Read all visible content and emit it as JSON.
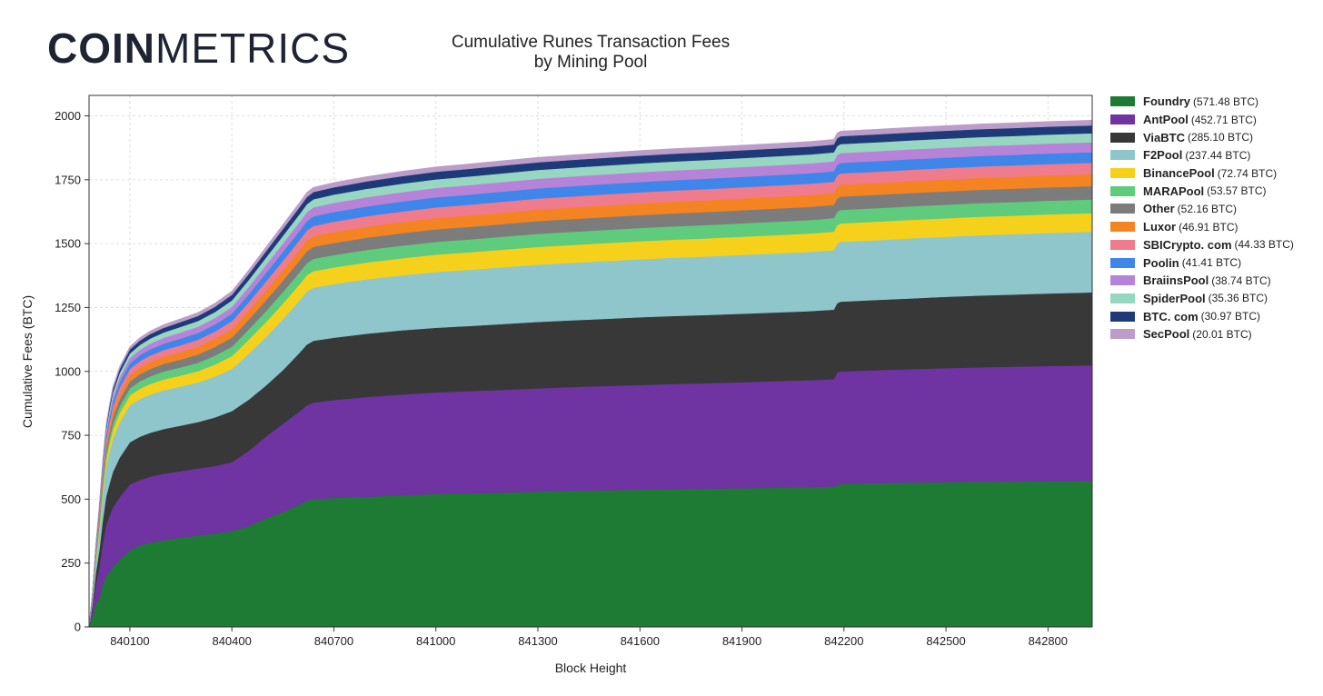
{
  "brand": {
    "name_bold": "COIN",
    "name_light": "METRICS"
  },
  "chart_data": {
    "type": "area",
    "stacked": true,
    "title": "Cumulative Runes Transaction Fees",
    "subtitle": "by Mining Pool",
    "xlabel": "Block Height",
    "ylabel": "Cumulative Fees (BTC)",
    "xlim": [
      839980,
      842930
    ],
    "ylim": [
      0,
      2080
    ],
    "xticks": [
      840100,
      840400,
      840700,
      841000,
      841300,
      841600,
      841900,
      842200,
      842500,
      842800
    ],
    "yticks": [
      0,
      250,
      500,
      750,
      1000,
      1250,
      1500,
      1750,
      2000
    ],
    "grid": true,
    "legend_position": "right",
    "x": [
      839980,
      839990,
      840000,
      840010,
      840020,
      840030,
      840040,
      840050,
      840070,
      840100,
      840130,
      840160,
      840200,
      840250,
      840300,
      840350,
      840400,
      840450,
      840500,
      840550,
      840600,
      840620,
      840640,
      840700,
      840800,
      840900,
      841000,
      841100,
      841200,
      841300,
      841400,
      841500,
      841600,
      841700,
      841800,
      841900,
      842000,
      842100,
      842170,
      842180,
      842190,
      842300,
      842400,
      842500,
      842600,
      842700,
      842800,
      842930
    ],
    "series": [
      {
        "name": "Foundry",
        "label": "(571.48 BTC)",
        "color": "#1e7b34",
        "values": [
          0,
          40,
          90,
          110,
          165,
          200,
          215,
          235,
          265,
          300,
          320,
          330,
          340,
          350,
          357,
          365,
          375,
          395,
          425,
          450,
          480,
          495,
          500,
          505,
          510,
          515,
          520,
          523,
          526,
          530,
          533,
          535,
          537,
          539,
          541,
          543,
          545,
          547,
          550,
          555,
          560,
          563,
          565,
          567,
          568,
          569,
          570,
          571.48
        ]
      },
      {
        "name": "AntPool",
        "label": "(452.71 BTC)",
        "color": "#6f34a2",
        "values": [
          0,
          30,
          80,
          120,
          160,
          200,
          220,
          232,
          243,
          258,
          255,
          258,
          260,
          260,
          263,
          265,
          270,
          295,
          320,
          345,
          365,
          372,
          378,
          383,
          390,
          395,
          398,
          400,
          402,
          404,
          406,
          408,
          410,
          412,
          413,
          415,
          417,
          419,
          420,
          440,
          440,
          442,
          444,
          446,
          448,
          450,
          451,
          452.71
        ]
      },
      {
        "name": "ViaBTC",
        "label": "(285.10 BTC)",
        "color": "#383838",
        "values": [
          0,
          20,
          45,
          70,
          90,
          110,
          125,
          140,
          155,
          165,
          170,
          172,
          175,
          178,
          182,
          190,
          200,
          200,
          200,
          210,
          230,
          238,
          242,
          244,
          248,
          251,
          253,
          255,
          258,
          260,
          261,
          263,
          265,
          266,
          267,
          268,
          269,
          270,
          272,
          272,
          273,
          275,
          277,
          279,
          281,
          282,
          284,
          285.1
        ]
      },
      {
        "name": "F2Pool",
        "label": "(237.44 BTC)",
        "color": "#8ec6cb",
        "values": [
          0,
          15,
          40,
          70,
          95,
          115,
          125,
          130,
          138,
          145,
          148,
          150,
          152,
          153,
          155,
          160,
          165,
          180,
          190,
          200,
          205,
          207,
          208,
          210,
          213,
          215,
          218,
          220,
          222,
          224,
          225,
          226,
          227,
          228,
          229,
          230,
          231,
          232,
          233,
          233,
          234,
          234,
          235,
          235,
          236,
          236,
          237,
          237.44
        ]
      },
      {
        "name": "BinancePool",
        "label": "(72.74 BTC)",
        "color": "#f6d11b",
        "values": [
          0,
          5,
          12,
          18,
          24,
          28,
          32,
          34,
          36,
          38,
          40,
          41,
          42,
          43,
          44,
          47,
          50,
          55,
          58,
          61,
          63,
          64,
          64.5,
          65,
          66,
          67,
          68,
          68.5,
          69,
          69.5,
          70,
          70.2,
          70.5,
          70.8,
          71,
          71.2,
          71.5,
          71.8,
          72,
          72,
          72.1,
          72.2,
          72.3,
          72.4,
          72.5,
          72.6,
          72.7,
          72.74
        ]
      },
      {
        "name": "MARAPool",
        "label": "(53.57 BTC)",
        "color": "#5fcb7c",
        "values": [
          0,
          4,
          9,
          13,
          18,
          21,
          23,
          25,
          27,
          28,
          29,
          30,
          31,
          32,
          33,
          35,
          37,
          40,
          43,
          45,
          47,
          47.5,
          48,
          48.5,
          49,
          49.5,
          50,
          50.3,
          50.6,
          51,
          51.3,
          51.6,
          51.8,
          52,
          52.2,
          52.4,
          52.6,
          52.8,
          53,
          53,
          53.1,
          53.2,
          53.3,
          53.35,
          53.4,
          53.45,
          53.5,
          53.57
        ]
      },
      {
        "name": "Other",
        "label": "(52.16 BTC)",
        "color": "#7c7c7c",
        "values": [
          0,
          4,
          9,
          13,
          17,
          20,
          22,
          24,
          26,
          27,
          28,
          29,
          30,
          31,
          32,
          34,
          36,
          39,
          42,
          44,
          46,
          46.5,
          47,
          47.5,
          48,
          48.5,
          49,
          49.3,
          49.6,
          50,
          50.2,
          50.4,
          50.6,
          50.8,
          51,
          51.2,
          51.4,
          51.6,
          51.8,
          51.8,
          51.9,
          51.95,
          52,
          52.03,
          52.06,
          52.1,
          52.13,
          52.16
        ]
      },
      {
        "name": "Luxor",
        "label": "(46.91 BTC)",
        "color": "#f38421",
        "values": [
          0,
          3,
          8,
          12,
          15,
          18,
          20,
          22,
          24,
          25,
          26,
          27,
          28,
          29,
          30,
          31,
          33,
          35,
          38,
          40,
          41,
          41.5,
          42,
          42.5,
          43,
          43.5,
          44,
          44.3,
          44.6,
          45,
          45.2,
          45.4,
          45.6,
          45.8,
          46,
          46.1,
          46.2,
          46.3,
          46.5,
          46.5,
          46.55,
          46.6,
          46.65,
          46.7,
          46.75,
          46.8,
          46.85,
          46.91
        ]
      },
      {
        "name": "SBICrypto. com",
        "label": "(44.33 BTC)",
        "color": "#ef7b8d",
        "values": [
          0,
          3,
          7,
          11,
          14,
          17,
          19,
          21,
          23,
          24,
          25,
          25.5,
          26,
          27,
          28,
          29,
          31,
          33,
          36,
          38,
          39,
          39.5,
          40,
          40.5,
          41,
          41.5,
          42,
          42.3,
          42.6,
          42.9,
          43.1,
          43.3,
          43.5,
          43.6,
          43.7,
          43.8,
          43.9,
          44,
          44.1,
          44.1,
          44.15,
          44.18,
          44.2,
          44.23,
          44.26,
          44.28,
          44.3,
          44.33
        ]
      },
      {
        "name": "Poolin",
        "label": "(41.41 BTC)",
        "color": "#3f86ea",
        "values": [
          0,
          3,
          7,
          10,
          13,
          16,
          18,
          20,
          21,
          22,
          23,
          24,
          25,
          26,
          26.5,
          27.5,
          29,
          31,
          33,
          35,
          36.5,
          37,
          37.5,
          38,
          38.5,
          39,
          39.3,
          39.6,
          39.9,
          40.1,
          40.3,
          40.5,
          40.6,
          40.7,
          40.8,
          40.9,
          41,
          41.1,
          41.2,
          41.2,
          41.22,
          41.25,
          41.28,
          41.3,
          41.33,
          41.36,
          41.38,
          41.41
        ]
      },
      {
        "name": "BraiinsPool",
        "label": "(38.74 BTC)",
        "color": "#b683d8",
        "values": [
          0,
          3,
          6,
          9,
          12,
          15,
          17,
          18,
          19.5,
          20.5,
          21.5,
          22.5,
          23,
          24,
          24.5,
          25.5,
          27,
          29,
          31,
          33,
          34,
          34.5,
          35,
          35.5,
          36,
          36.5,
          36.8,
          37.1,
          37.4,
          37.6,
          37.8,
          37.9,
          38,
          38.1,
          38.2,
          38.3,
          38.4,
          38.5,
          38.55,
          38.55,
          38.58,
          38.6,
          38.62,
          38.65,
          38.67,
          38.7,
          38.72,
          38.74
        ]
      },
      {
        "name": "SpiderPool",
        "label": "(35.36 BTC)",
        "color": "#97d6c0",
        "values": [
          0,
          2,
          5,
          8,
          11,
          13,
          15,
          16,
          17,
          18,
          19,
          20,
          21,
          22,
          22.5,
          23.5,
          25,
          27,
          29,
          30,
          31,
          31.5,
          32,
          32.5,
          33,
          33.3,
          33.6,
          33.9,
          34.1,
          34.3,
          34.5,
          34.6,
          34.7,
          34.8,
          34.9,
          35,
          35.05,
          35.1,
          35.15,
          35.15,
          35.18,
          35.2,
          35.22,
          35.25,
          35.28,
          35.3,
          35.33,
          35.36
        ]
      },
      {
        "name": "BTC. com",
        "label": "(30.97 BTC)",
        "color": "#1e3a78",
        "values": [
          0,
          2,
          5,
          7,
          9,
          11,
          13,
          14,
          15,
          16,
          17,
          17.5,
          18,
          19,
          19.5,
          20.5,
          22,
          23.5,
          25,
          26.5,
          27.5,
          28,
          28.3,
          28.6,
          29,
          29.3,
          29.6,
          29.8,
          30,
          30.1,
          30.2,
          30.3,
          30.4,
          30.5,
          30.55,
          30.6,
          30.65,
          30.7,
          30.75,
          30.75,
          30.78,
          30.8,
          30.83,
          30.86,
          30.89,
          30.92,
          30.95,
          30.97
        ]
      },
      {
        "name": "SecPool",
        "label": "(20.01 BTC)",
        "color": "#bc9cc8",
        "values": [
          0,
          1,
          3,
          4.5,
          6,
          7,
          8,
          9,
          10,
          10.5,
          11,
          11.5,
          12,
          12.5,
          13,
          13.5,
          14,
          15,
          16,
          17,
          17.5,
          18,
          18.2,
          18.4,
          18.6,
          18.8,
          19,
          19.1,
          19.2,
          19.3,
          19.4,
          19.5,
          19.55,
          19.6,
          19.65,
          19.7,
          19.75,
          19.8,
          19.85,
          19.85,
          19.87,
          19.9,
          19.92,
          19.94,
          19.96,
          19.98,
          20,
          20.01
        ]
      }
    ]
  }
}
